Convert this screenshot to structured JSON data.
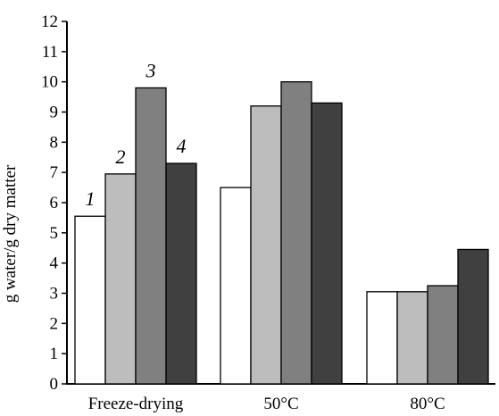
{
  "chart_data": {
    "type": "bar",
    "categories": [
      "Freeze-drying",
      "50°C",
      "80°C"
    ],
    "series": [
      {
        "label": "1",
        "color": "#ffffff",
        "values": [
          5.55,
          6.5,
          3.05
        ]
      },
      {
        "label": "2",
        "color": "#bdbdbd",
        "values": [
          6.95,
          9.2,
          3.05
        ]
      },
      {
        "label": "3",
        "color": "#808080",
        "values": [
          9.8,
          10.0,
          3.25
        ]
      },
      {
        "label": "4",
        "color": "#404040",
        "values": [
          7.3,
          9.3,
          4.45
        ]
      }
    ],
    "series_labels_shown_in_group": 0,
    "ylabel": "g water/g dry matter",
    "xlabel": "",
    "title": "",
    "ylim": [
      0,
      12
    ],
    "yticks": [
      "0",
      "1",
      "2",
      "3",
      "4",
      "5",
      "6",
      "7",
      "8",
      "9",
      "10",
      "11",
      "12"
    ],
    "grid": false
  }
}
